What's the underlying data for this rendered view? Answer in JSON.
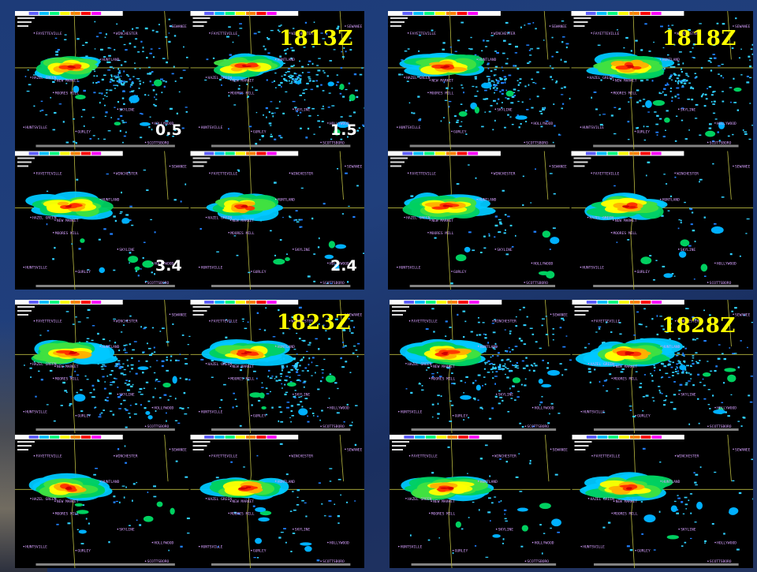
{
  "slide": {
    "background": "#1f3c78"
  },
  "colors": {
    "time_label": "#ffff00",
    "elevation_label": "#ffffff",
    "map_lines": "#b8b840",
    "town_labels": "#d6a0ff",
    "panel_bg": "#000000"
  },
  "towns": [
    {
      "name": "FAYETTEVILLE"
    },
    {
      "name": "WINCHESTER"
    },
    {
      "name": "SEWANEE"
    },
    {
      "name": "HUNTLAND"
    },
    {
      "name": "HAZEL GREEN"
    },
    {
      "name": "NEW MARKET"
    },
    {
      "name": "MOORES MILL"
    },
    {
      "name": "SKYLINE"
    },
    {
      "name": "HUNTSVILLE"
    },
    {
      "name": "GURLEY"
    },
    {
      "name": "HOLLYWOOD"
    },
    {
      "name": "SCOTTSBORO"
    }
  ],
  "quadrants": [
    {
      "time": "1813Z",
      "elevations": [
        "0.5",
        "1.5",
        "3.4",
        "2.4"
      ],
      "storm_intensity": 0.7
    },
    {
      "time": "1818Z",
      "elevations": [],
      "storm_intensity": 0.8
    },
    {
      "time": "1823Z",
      "elevations": [],
      "storm_intensity": 0.85
    },
    {
      "time": "1828Z",
      "elevations": [],
      "storm_intensity": 0.95
    }
  ]
}
